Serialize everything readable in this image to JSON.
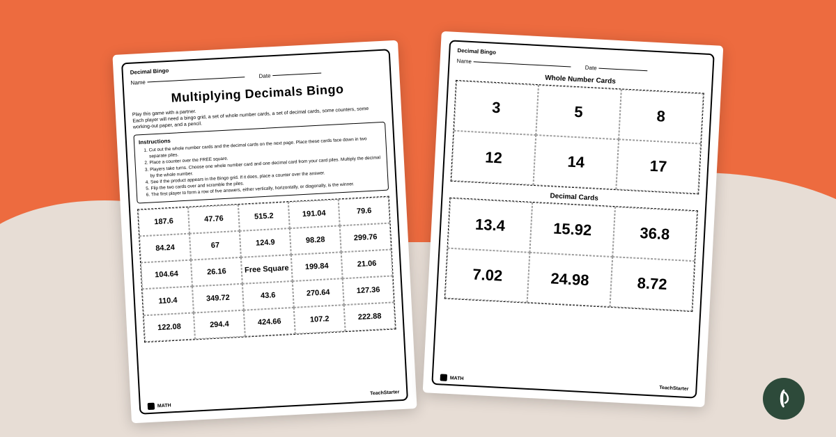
{
  "header": "Decimal Bingo",
  "name_label": "Name",
  "date_label": "Date",
  "title": "Multiplying Decimals Bingo",
  "intro1": "Play this game with a partner.",
  "intro2": "Each player will need a bingo grid, a set of whole number cards, a set of decimal cards, some counters, some working-out paper, and a pencil.",
  "instructions_title": "Instructions",
  "steps": [
    "Cut out the whole number cards and the decimal cards on the next page. Place these cards face down in two separate piles.",
    "Place a counter over the FREE square.",
    "Players take turns. Choose one whole number card and one decimal card from your card piles. Multiply the decimal by the whole number.",
    "See if the product appears in the Bingo grid. If it does, place a counter over the answer.",
    "Flip the two cards over and scramble the piles.",
    "The first player to form a row of five answers, either vertically, horizontally, or diagonally, is the winner."
  ],
  "bingo": [
    "187.6",
    "47.76",
    "515.2",
    "191.04",
    "79.6",
    "84.24",
    "67",
    "124.9",
    "98.28",
    "299.76",
    "104.64",
    "26.16",
    "Free Square",
    "199.84",
    "21.06",
    "110.4",
    "349.72",
    "43.6",
    "270.64",
    "127.36",
    "122.08",
    "294.4",
    "424.66",
    "107.2",
    "222.88"
  ],
  "whole_title": "Whole Number Cards",
  "whole": [
    "3",
    "5",
    "8",
    "12",
    "14",
    "17"
  ],
  "decimal_title": "Decimal Cards",
  "decimal": [
    "13.4",
    "15.92",
    "36.8",
    "7.02",
    "24.98",
    "8.72"
  ],
  "subject": "MATH",
  "brand": "TeachStarter"
}
